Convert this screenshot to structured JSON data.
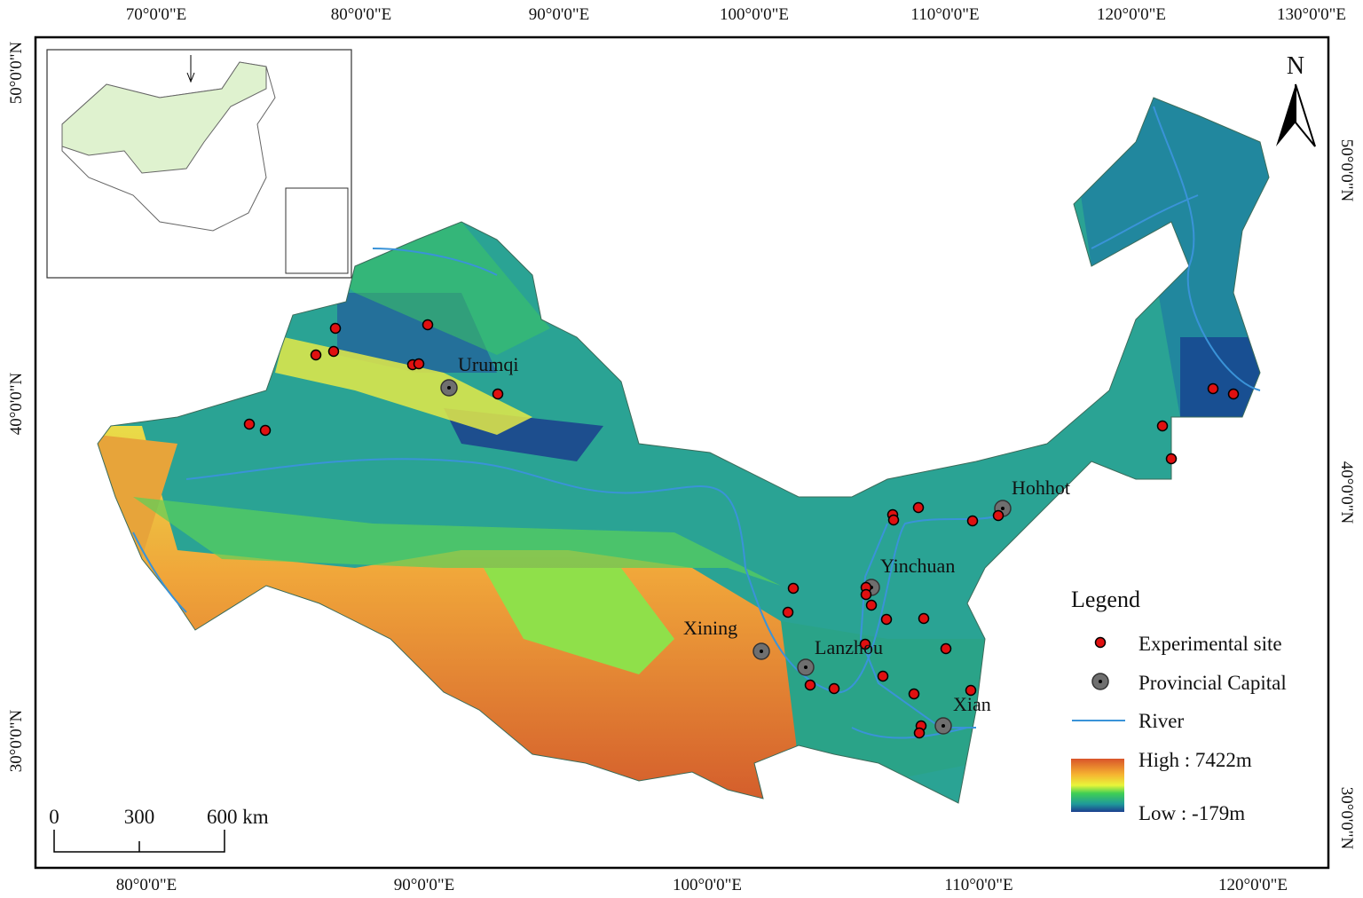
{
  "map": {
    "graticule": {
      "top": [
        "70°0'0\"E",
        "80°0'0\"E",
        "90°0'0\"E",
        "100°0'0\"E",
        "110°0'0\"E",
        "120°0'0\"E",
        "130°0'0\"E"
      ],
      "bottom": [
        "80°0'0\"E",
        "90°0'0\"E",
        "100°0'0\"E",
        "110°0'0\"E",
        "120°0'0\"E"
      ],
      "left": [
        "50°0'0\"N",
        "40°0'0\"N",
        "30°0'0\"N"
      ],
      "right": [
        "50°0'0\"N",
        "40°0'0\"N",
        "30°0'0\"N"
      ]
    },
    "north_label": "N",
    "cities": [
      "Urumqi",
      "Hohhot",
      "Yinchuan",
      "Xining",
      "Lanzhou",
      "Xian"
    ],
    "legend": {
      "title": "Legend",
      "items": [
        "Experimental site",
        "Provincial Capital",
        "River"
      ],
      "high": "High : 7422m",
      "low": "Low : -179m"
    },
    "scale_bar": [
      "0",
      "300",
      "600 km"
    ]
  }
}
